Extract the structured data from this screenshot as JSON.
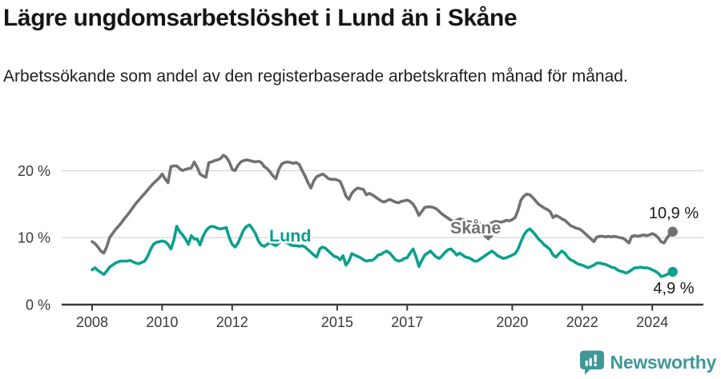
{
  "title": "Lägre ungdomsarbetslöshet i Lund än i Skåne",
  "subtitle": "Arbetssökande som andel av den registerbaserade arbetskraften månad för månad.",
  "logo": {
    "brand": "Newsworthy",
    "icon": "newsworthy-chart-bubble-icon",
    "color": "#3f9798"
  },
  "chart_data": {
    "type": "line",
    "title": "Lägre ungdomsarbetslöshet i Lund än i Skåne",
    "subtitle": "Arbetssökande som andel av den registerbaserade arbetskraften månad för månad.",
    "x_start": "2008-01",
    "x_end": "2024-08",
    "x_interval": "monthly",
    "grid": "horizontal-only",
    "legend_position": "inline-labels-on-lines",
    "y_axis": {
      "unit": "%",
      "min": 0,
      "max": 24,
      "ticks": [
        0,
        10,
        20
      ],
      "tick_labels": [
        "0 %",
        "10 %",
        "20 %"
      ]
    },
    "x_axis": {
      "ticks": [
        2008,
        2010,
        2012,
        2015,
        2017,
        2020,
        2022,
        2024
      ],
      "tick_labels": [
        "2008",
        "2010",
        "2012",
        "2015",
        "2017",
        "2020",
        "2022",
        "2024"
      ]
    },
    "series": [
      {
        "name": "Skåne",
        "color": "#717175",
        "end_value": 10.9,
        "end_label": "10,9 %",
        "values": [
          9.4,
          9.1,
          8.6,
          8.0,
          7.7,
          8.6,
          10.0,
          10.6,
          11.2,
          11.7,
          12.2,
          12.8,
          13.3,
          13.9,
          14.5,
          15.1,
          15.6,
          16.1,
          16.6,
          17.1,
          17.6,
          18.1,
          18.5,
          18.9,
          19.5,
          18.8,
          18.2,
          20.6,
          20.7,
          20.7,
          20.3,
          20.0,
          20.2,
          20.3,
          20.4,
          21.3,
          20.5,
          19.5,
          19.2,
          19.0,
          21.2,
          21.3,
          21.5,
          21.6,
          21.8,
          22.3,
          22.0,
          21.3,
          20.2,
          20.0,
          20.8,
          21.3,
          21.5,
          21.6,
          21.5,
          21.4,
          21.3,
          21.4,
          21.2,
          20.6,
          20.3,
          19.8,
          19.2,
          18.8,
          20.2,
          21.0,
          21.2,
          21.3,
          21.2,
          21.1,
          21.2,
          20.9,
          20.0,
          19.2,
          18.2,
          17.4,
          18.5,
          19.1,
          19.3,
          19.5,
          19.2,
          18.8,
          18.7,
          18.7,
          18.6,
          18.4,
          17.4,
          16.2,
          15.7,
          16.6,
          17.1,
          17.4,
          17.3,
          17.2,
          16.4,
          16.6,
          16.4,
          16.1,
          15.8,
          15.5,
          15.3,
          15.5,
          15.7,
          15.5,
          15.3,
          15.2,
          15.4,
          15.5,
          15.6,
          15.4,
          15.0,
          14.3,
          13.3,
          13.9,
          14.5,
          14.6,
          14.6,
          14.5,
          14.3,
          13.9,
          13.5,
          13.2,
          12.9,
          12.6,
          12.4,
          12.6,
          12.8,
          12.7,
          12.5,
          12.4,
          12.3,
          12.2,
          12.2,
          12.1,
          12.0,
          11.9,
          12.0,
          12.2,
          12.4,
          12.4,
          12.3,
          12.4,
          12.6,
          12.5,
          12.7,
          13.0,
          14.1,
          15.6,
          16.2,
          16.5,
          16.4,
          16.0,
          15.5,
          15.0,
          14.7,
          14.4,
          14.2,
          13.9,
          13.0,
          13.3,
          13.1,
          12.8,
          12.6,
          12.2,
          11.8,
          11.6,
          11.4,
          11.3,
          11.0,
          10.6,
          10.2,
          9.8,
          9.4,
          10.1,
          10.2,
          10.2,
          10.1,
          10.2,
          10.1,
          10.2,
          10.1,
          10.0,
          9.9,
          9.6,
          9.2,
          10.2,
          10.3,
          10.2,
          10.3,
          10.4,
          10.3,
          10.4,
          10.6,
          10.4,
          10.0,
          9.4,
          9.2,
          9.9,
          10.5,
          10.9
        ]
      },
      {
        "name": "Lund",
        "color": "#0ba08f",
        "end_value": 4.9,
        "end_label": "4,9 %",
        "values": [
          5.2,
          5.5,
          5.1,
          4.8,
          4.5,
          5.0,
          5.6,
          5.9,
          6.2,
          6.4,
          6.5,
          6.5,
          6.5,
          6.6,
          6.4,
          6.2,
          6.1,
          6.3,
          6.5,
          7.2,
          8.2,
          9.0,
          9.3,
          9.4,
          9.5,
          9.4,
          9.0,
          8.3,
          9.6,
          11.7,
          10.9,
          10.4,
          9.8,
          9.0,
          10.3,
          9.8,
          9.8,
          8.9,
          10.2,
          11.0,
          11.5,
          11.7,
          11.6,
          11.4,
          11.3,
          11.4,
          11.5,
          10.0,
          9.0,
          8.6,
          9.2,
          10.2,
          11.2,
          11.7,
          11.9,
          11.3,
          10.6,
          9.5,
          8.9,
          8.7,
          9.0,
          9.3,
          9.0,
          8.8,
          9.2,
          9.5,
          9.4,
          9.2,
          8.9,
          8.8,
          8.8,
          8.7,
          8.8,
          8.6,
          8.2,
          7.8,
          7.4,
          7.1,
          8.3,
          8.6,
          8.4,
          8.0,
          7.6,
          7.2,
          7.1,
          6.7,
          7.3,
          5.9,
          6.5,
          7.6,
          7.4,
          7.2,
          7.0,
          6.7,
          6.5,
          6.6,
          6.6,
          6.9,
          7.4,
          7.5,
          7.8,
          8.0,
          7.7,
          7.2,
          6.7,
          6.5,
          6.6,
          6.9,
          7.0,
          7.7,
          8.3,
          7.2,
          5.7,
          6.6,
          7.4,
          7.7,
          8.0,
          7.5,
          7.1,
          6.9,
          7.3,
          7.8,
          8.2,
          8.3,
          7.9,
          7.4,
          7.7,
          7.4,
          7.1,
          7.0,
          6.8,
          6.5,
          6.5,
          6.8,
          7.1,
          7.4,
          7.7,
          8.0,
          7.7,
          7.3,
          7.1,
          6.9,
          7.0,
          7.2,
          7.4,
          7.6,
          8.3,
          9.4,
          10.4,
          11.0,
          11.3,
          10.9,
          10.4,
          9.8,
          9.4,
          8.9,
          8.6,
          8.2,
          7.4,
          7.1,
          7.6,
          8.0,
          7.7,
          7.1,
          6.7,
          6.5,
          6.2,
          6.0,
          5.9,
          5.7,
          5.5,
          5.7,
          5.9,
          6.2,
          6.2,
          6.1,
          6.0,
          5.8,
          5.6,
          5.5,
          5.2,
          5.0,
          4.9,
          4.7,
          4.9,
          5.2,
          5.5,
          5.5,
          5.6,
          5.5,
          5.5,
          5.4,
          5.2,
          5.0,
          4.7,
          4.2,
          4.3,
          4.5,
          4.7,
          4.9
        ]
      }
    ]
  }
}
